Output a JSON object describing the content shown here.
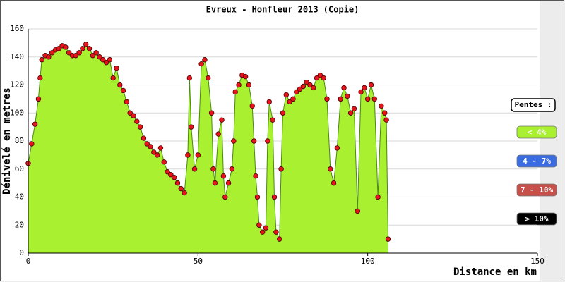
{
  "chart_data": {
    "type": "area",
    "title": "Evreux - Honfleur 2013 (Copie)",
    "x_label": "Distance en km",
    "y_label": "Dénivelé en metres",
    "xlim": [
      0,
      150
    ],
    "xticks": [
      0,
      50,
      100,
      150
    ],
    "ylim": [
      0,
      160
    ],
    "yticks": [
      0,
      20,
      40,
      60,
      80,
      100,
      120,
      140,
      160
    ],
    "grid": true,
    "color": "#a8f030",
    "marker_color": "#e8141b",
    "x": [
      0,
      1,
      2,
      3,
      3.5,
      4,
      5,
      6,
      7,
      8,
      9,
      10,
      11,
      12,
      13,
      14,
      15,
      16,
      17,
      18,
      19,
      20,
      21,
      22,
      23,
      24,
      25,
      26,
      27,
      28,
      29,
      30,
      31,
      32,
      33,
      34,
      35,
      36,
      37,
      38,
      39,
      40,
      41,
      42,
      43,
      44,
      45,
      46,
      47,
      47.5,
      48,
      49,
      50,
      51,
      52,
      53,
      54,
      54.5,
      55,
      56,
      57,
      57.5,
      58,
      59,
      60,
      60.5,
      61,
      62,
      63,
      64,
      65,
      66,
      66.5,
      67,
      67.5,
      68,
      69,
      70,
      70.5,
      71,
      72,
      72.5,
      73,
      74,
      74.5,
      75,
      76,
      77,
      78,
      79,
      80,
      81,
      82,
      83,
      84,
      85,
      86,
      87,
      88,
      89,
      90,
      91,
      92,
      93,
      94,
      95,
      96,
      97,
      98,
      99,
      100,
      101,
      102,
      103,
      104,
      105,
      105.5,
      106
    ],
    "values": [
      64,
      78,
      92,
      110,
      125,
      138,
      141,
      140,
      143,
      145,
      146,
      148,
      147,
      143,
      141,
      141,
      143,
      146,
      149,
      146,
      141,
      143,
      140,
      138,
      136,
      138,
      125,
      132,
      120,
      116,
      108,
      100,
      98,
      94,
      90,
      82,
      78,
      76,
      72,
      70,
      75,
      65,
      58,
      56,
      54,
      50,
      46,
      43,
      70,
      125,
      90,
      60,
      70,
      135,
      138,
      125,
      100,
      60,
      50,
      85,
      95,
      55,
      40,
      50,
      60,
      80,
      115,
      120,
      127,
      126,
      120,
      105,
      80,
      55,
      40,
      20,
      15,
      18,
      80,
      108,
      95,
      40,
      15,
      10,
      60,
      100,
      113,
      108,
      110,
      115,
      117,
      119,
      122,
      120,
      118,
      125,
      127,
      125,
      110,
      60,
      50,
      75,
      110,
      118,
      112,
      100,
      103,
      30,
      115,
      118,
      110,
      120,
      110,
      40,
      105,
      100,
      95,
      10
    ],
    "legend": {
      "title": "Pentes :",
      "items": [
        {
          "label": "< 4%",
          "color": "#a8f030"
        },
        {
          "label": "4 - 7%",
          "color": "#3a6ee0"
        },
        {
          "label": "7 - 10%",
          "color": "#c8504a"
        },
        {
          "label": "> 10%",
          "color": "#000000"
        }
      ]
    }
  }
}
